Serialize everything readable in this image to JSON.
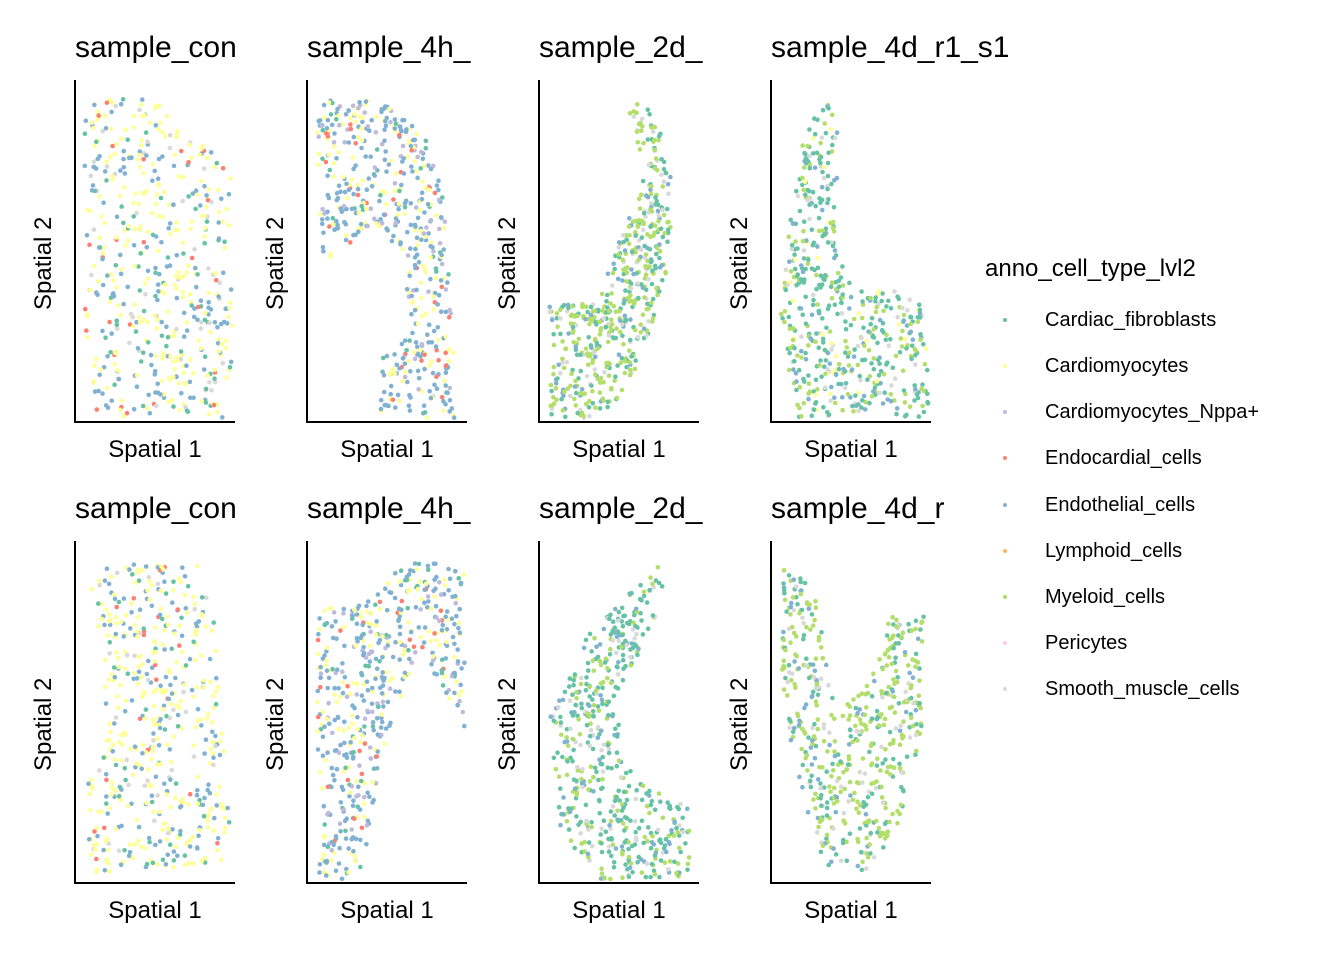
{
  "chart_data": [
    {
      "type": "scatter",
      "title": "sample_con",
      "xlabel": "Spatial 1",
      "ylabel": "Spatial 2",
      "composition": [
        "Cardiomyocytes",
        "Endothelial_cells",
        "Cardiac_fibroblasts",
        "Smooth_muscle_cells",
        "Endocardial_cells",
        "Pericytes"
      ]
    },
    {
      "type": "scatter",
      "title": "sample_4h_",
      "xlabel": "Spatial 1",
      "ylabel": "Spatial 2",
      "composition": [
        "Endothelial_cells",
        "Cardiomyocytes",
        "Cardiomyocytes_Nppa+",
        "Cardiac_fibroblasts",
        "Endocardial_cells"
      ]
    },
    {
      "type": "scatter",
      "title": "sample_2d_",
      "xlabel": "Spatial 1",
      "ylabel": "Spatial 2",
      "composition": [
        "Myeloid_cells",
        "Cardiac_fibroblasts",
        "Endothelial_cells",
        "Smooth_muscle_cells"
      ]
    },
    {
      "type": "scatter",
      "title": "sample_4d_r1_s1",
      "xlabel": "Spatial 1",
      "ylabel": "Spatial 2",
      "composition": [
        "Cardiac_fibroblasts",
        "Myeloid_cells",
        "Endothelial_cells",
        "Smooth_muscle_cells",
        "Cardiomyocytes"
      ]
    },
    {
      "type": "scatter",
      "title": "sample_con",
      "xlabel": "Spatial 1",
      "ylabel": "Spatial 2",
      "composition": [
        "Cardiomyocytes",
        "Endothelial_cells",
        "Cardiac_fibroblasts",
        "Smooth_muscle_cells",
        "Endocardial_cells"
      ]
    },
    {
      "type": "scatter",
      "title": "sample_4h_",
      "xlabel": "Spatial 1",
      "ylabel": "Spatial 2",
      "composition": [
        "Endothelial_cells",
        "Cardiomyocytes",
        "Cardiomyocytes_Nppa+",
        "Cardiac_fibroblasts",
        "Endocardial_cells"
      ]
    },
    {
      "type": "scatter",
      "title": "sample_2d_",
      "xlabel": "Spatial 1",
      "ylabel": "Spatial 2",
      "composition": [
        "Cardiac_fibroblasts",
        "Myeloid_cells",
        "Smooth_muscle_cells",
        "Endothelial_cells"
      ]
    },
    {
      "type": "scatter",
      "title": "sample_4d_r",
      "xlabel": "Spatial 1",
      "ylabel": "Spatial 2",
      "composition": [
        "Myeloid_cells",
        "Cardiac_fibroblasts",
        "Endothelial_cells",
        "Smooth_muscle_cells"
      ]
    }
  ],
  "legend": {
    "title": "anno_cell_type_lvl2",
    "placement": "right",
    "items": [
      {
        "label": "Cardiac_fibroblasts",
        "color": "#66C2A5"
      },
      {
        "label": "Cardiomyocytes",
        "color": "#FFFF99"
      },
      {
        "label": "Cardiomyocytes_Nppa+",
        "color": "#BEBADA"
      },
      {
        "label": "Endocardial_cells",
        "color": "#FB8072"
      },
      {
        "label": "Endothelial_cells",
        "color": "#80B1D3"
      },
      {
        "label": "Lymphoid_cells",
        "color": "#FDB462"
      },
      {
        "label": "Myeloid_cells",
        "color": "#B3DE69"
      },
      {
        "label": "Pericytes",
        "color": "#FCCDE5"
      },
      {
        "label": "Smooth_muscle_cells",
        "color": "#D9D9D9"
      }
    ]
  }
}
